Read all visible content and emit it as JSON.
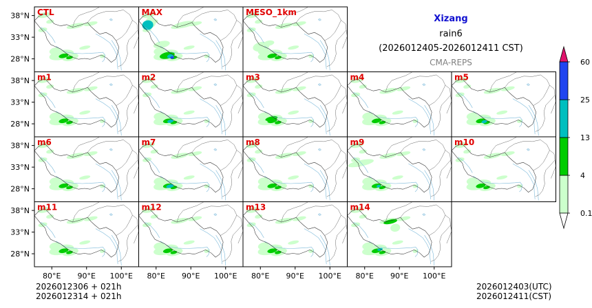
{
  "header": {
    "region": "Xizang",
    "variable": "rain6",
    "period": "(2026012405-2026012411 CST)",
    "model": "CMA-REPS",
    "region_color": "#1010d0",
    "model_color": "#808080"
  },
  "footer": {
    "init_utc_line": "2026012306  +  021h",
    "init_cst_line": "2026012314  +  021h",
    "valid_utc": "2026012403(UTC)",
    "valid_cst": "2026012411(CST)"
  },
  "chart_data": {
    "type": "heatmap",
    "description_kind": "ensemble precipitation map panels",
    "panels": [
      {
        "label": "CTL",
        "row": 0,
        "col": 0
      },
      {
        "label": "MAX",
        "row": 0,
        "col": 1
      },
      {
        "label": "MESO_1km",
        "row": 0,
        "col": 2
      },
      {
        "label": "m1",
        "row": 1,
        "col": 0
      },
      {
        "label": "m2",
        "row": 1,
        "col": 1
      },
      {
        "label": "m3",
        "row": 1,
        "col": 2
      },
      {
        "label": "m4",
        "row": 1,
        "col": 3
      },
      {
        "label": "m5",
        "row": 1,
        "col": 4
      },
      {
        "label": "m6",
        "row": 2,
        "col": 0
      },
      {
        "label": "m7",
        "row": 2,
        "col": 1
      },
      {
        "label": "m8",
        "row": 2,
        "col": 2
      },
      {
        "label": "m9",
        "row": 2,
        "col": 3
      },
      {
        "label": "m10",
        "row": 2,
        "col": 4
      },
      {
        "label": "m11",
        "row": 3,
        "col": 0
      },
      {
        "label": "m12",
        "row": 3,
        "col": 1
      },
      {
        "label": "m13",
        "row": 3,
        "col": 2
      },
      {
        "label": "m14",
        "row": 3,
        "col": 3
      }
    ],
    "lon_range": [
      75,
      105
    ],
    "lat_range": [
      25,
      40
    ],
    "x_ticks": [
      80,
      90,
      100
    ],
    "x_tick_labels": [
      "80°E",
      "90°E",
      "100°E"
    ],
    "y_ticks": [
      38,
      33,
      28
    ],
    "y_tick_labels": [
      "38°N",
      "33°N",
      "28°N"
    ],
    "colorbar": {
      "levels": [
        0.1,
        4,
        13,
        25,
        60
      ],
      "level_labels": [
        "0.1",
        "4",
        "13",
        "25",
        "60"
      ],
      "colors": [
        "#ccffcc",
        "#00cc00",
        "#00bfbf",
        "#2045f0"
      ],
      "under_color": "#ffffff",
      "over_color": "#e0136c"
    },
    "panel_label_color": "#e00000"
  }
}
